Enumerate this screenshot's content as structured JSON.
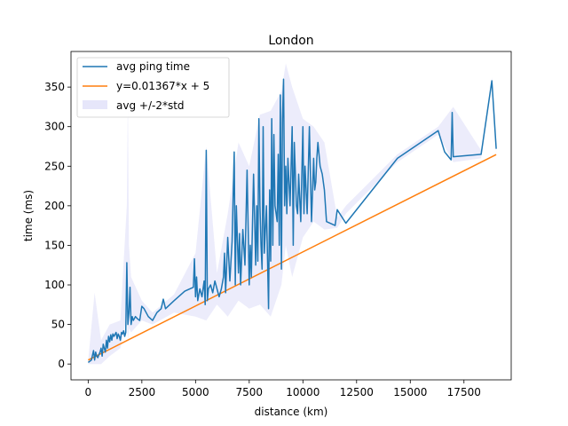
{
  "chart_data": {
    "type": "line",
    "title": "London",
    "xlabel": "distance (km)",
    "ylabel": "time (ms)",
    "xlim": [
      -800,
      19700
    ],
    "ylim": [
      -20,
      395
    ],
    "xticks": [
      0,
      2500,
      5000,
      7500,
      10000,
      12500,
      15000,
      17500
    ],
    "yticks": [
      0,
      50,
      100,
      150,
      200,
      250,
      300,
      350
    ],
    "grid": false,
    "legend_position": "top-left",
    "colors": {
      "avg_line": "#1f77b4",
      "fit_line": "#ff7f0e",
      "band": "#e6e6fa"
    },
    "legend": [
      {
        "label": "avg ping time",
        "kind": "line",
        "color": "#1f77b4"
      },
      {
        "label": "y=0.01367*x + 5",
        "kind": "line",
        "color": "#ff7f0e"
      },
      {
        "label": "avg +/-2*std",
        "kind": "patch",
        "color": "#e6e6fa"
      }
    ],
    "fit": {
      "slope": 0.01367,
      "intercept": 5,
      "x_range": [
        0,
        19000
      ]
    },
    "series": [
      {
        "name": "avg ping time",
        "x": [
          0,
          150,
          250,
          300,
          350,
          400,
          450,
          500,
          550,
          600,
          650,
          700,
          800,
          850,
          900,
          950,
          1000,
          1050,
          1100,
          1150,
          1200,
          1300,
          1350,
          1400,
          1450,
          1500,
          1550,
          1600,
          1650,
          1700,
          1750,
          1800,
          1850,
          1900,
          1950,
          2000,
          2050,
          2100,
          2200,
          2300,
          2400,
          2500,
          2600,
          2800,
          3000,
          3200,
          3400,
          3500,
          3600,
          4000,
          4500,
          4900,
          4950,
          5000,
          5050,
          5100,
          5200,
          5300,
          5400,
          5450,
          5500,
          5550,
          5600,
          5700,
          5800,
          5900,
          6000,
          6100,
          6200,
          6300,
          6350,
          6400,
          6500,
          6600,
          6700,
          6800,
          6850,
          6900,
          7000,
          7050,
          7100,
          7200,
          7300,
          7400,
          7500,
          7550,
          7600,
          7700,
          7800,
          7850,
          7900,
          7950,
          8000,
          8050,
          8100,
          8150,
          8200,
          8300,
          8400,
          8450,
          8500,
          8550,
          8600,
          8650,
          8700,
          8800,
          8850,
          8900,
          8950,
          9000,
          9050,
          9100,
          9150,
          9200,
          9250,
          9300,
          9400,
          9500,
          9550,
          9600,
          9700,
          9750,
          9800,
          9900,
          10000,
          10050,
          10100,
          10200,
          10300,
          10400,
          10500,
          10550,
          10600,
          10650,
          10700,
          10800,
          10900,
          11000,
          11100,
          11500,
          11600,
          12000,
          14400,
          16300,
          16600,
          16900,
          16950,
          17000,
          18300,
          18800,
          19000
        ],
        "y": [
          2,
          5,
          17,
          5,
          15,
          10,
          8,
          12,
          15,
          20,
          10,
          25,
          15,
          30,
          20,
          35,
          28,
          37,
          30,
          38,
          35,
          40,
          32,
          38,
          35,
          30,
          40,
          38,
          42,
          35,
          40,
          128,
          50,
          65,
          97,
          50,
          60,
          55,
          60,
          57,
          55,
          73,
          70,
          60,
          55,
          65,
          70,
          82,
          70,
          80,
          92,
          97,
          133,
          85,
          110,
          80,
          95,
          85,
          105,
          75,
          270,
          80,
          95,
          100,
          90,
          105,
          95,
          85,
          95,
          110,
          140,
          90,
          160,
          105,
          155,
          268,
          100,
          200,
          115,
          165,
          100,
          170,
          125,
          245,
          100,
          150,
          110,
          240,
          125,
          200,
          130,
          310,
          200,
          150,
          120,
          300,
          140,
          200,
          70,
          220,
          130,
          310,
          150,
          290,
          200,
          180,
          265,
          150,
          340,
          120,
          310,
          360,
          200,
          250,
          190,
          260,
          200,
          300,
          150,
          280,
          200,
          190,
          240,
          180,
          300,
          190,
          250,
          190,
          300,
          180,
          260,
          220,
          230,
          260,
          280,
          250,
          240,
          220,
          180,
          175,
          195,
          178,
          260,
          295,
          268,
          258,
          318,
          262,
          265,
          358,
          272
        ]
      }
    ],
    "band": {
      "name": "avg +/-2*std",
      "x": [
        0,
        300,
        600,
        1000,
        1500,
        1800,
        1850,
        1900,
        2000,
        2500,
        3000,
        4000,
        5000,
        5500,
        6000,
        6500,
        7000,
        7500,
        8000,
        8500,
        9000,
        9200,
        9500,
        10000,
        10500,
        11000,
        11600,
        12000,
        14400,
        16300,
        17000,
        18300,
        18800,
        19000
      ],
      "upper": [
        5,
        90,
        30,
        50,
        55,
        200,
        340,
        150,
        110,
        80,
        65,
        88,
        140,
        275,
        115,
        190,
        280,
        250,
        315,
        320,
        345,
        380,
        350,
        310,
        300,
        280,
        185,
        200,
        265,
        300,
        325,
        270,
        362,
        278
      ],
      "lower": [
        0,
        0,
        0,
        10,
        20,
        60,
        30,
        45,
        40,
        55,
        50,
        65,
        60,
        55,
        75,
        60,
        80,
        70,
        75,
        60,
        100,
        150,
        110,
        160,
        180,
        170,
        172,
        190,
        255,
        290,
        255,
        260,
        352,
        266
      ]
    }
  }
}
